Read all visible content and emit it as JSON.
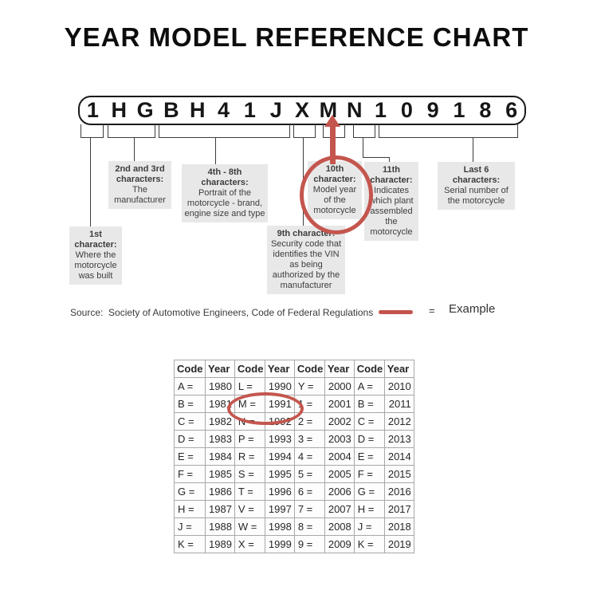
{
  "title": "YEAR MODEL REFERENCE CHART",
  "vin": {
    "characters": [
      "1",
      "H",
      "G",
      "B",
      "H",
      "4",
      "1",
      "J",
      "X",
      "M",
      "N",
      "1",
      "0",
      "9",
      "1",
      "8",
      "6"
    ]
  },
  "callouts": {
    "first": {
      "heading": "1st character:",
      "body": "Where the motorcycle was built"
    },
    "second_third": {
      "heading": "2nd and 3rd characters:",
      "body": "The manufacturer"
    },
    "fourth_eighth": {
      "heading": "4th - 8th characters:",
      "body": "Portrait of the motorcycle - brand, engine size and type"
    },
    "ninth": {
      "heading": "9th character:",
      "body": "Security code that identifies the VIN as being authorized by the manufacturer"
    },
    "tenth": {
      "heading": "10th character:",
      "body": "Model year of the motorcycle"
    },
    "eleventh": {
      "heading": "11th character:",
      "body": "Indicates which plant assembled the motorcycle"
    },
    "last_six": {
      "heading": "Last 6 characters:",
      "body": "Serial number of the motorcycle"
    }
  },
  "source_line": "Source:  Society of Automotive Engineers, Code of Federal Regulations",
  "legend": {
    "equals": "=",
    "label": "Example"
  },
  "table": {
    "headers": [
      "Code",
      "Year",
      "Code",
      "Year",
      "Code",
      "Year",
      "Code",
      "Year"
    ],
    "rows": [
      [
        "A =",
        "1980",
        "L =",
        "1990",
        "Y =",
        "2000",
        "A =",
        "2010"
      ],
      [
        "B =",
        "1981",
        "M =",
        "1991",
        "1 =",
        "2001",
        "B =",
        "2011"
      ],
      [
        "C =",
        "1982",
        "N =",
        "1992",
        "2 =",
        "2002",
        "C =",
        "2012"
      ],
      [
        "D =",
        "1983",
        "P =",
        "1993",
        "3 =",
        "2003",
        "D =",
        "2013"
      ],
      [
        "E =",
        "1984",
        "R =",
        "1994",
        "4 =",
        "2004",
        "E =",
        "2014"
      ],
      [
        "F =",
        "1985",
        "S =",
        "1995",
        "5 =",
        "2005",
        "F =",
        "2015"
      ],
      [
        "G =",
        "1986",
        "T =",
        "1996",
        "6 =",
        "2006",
        "G =",
        "2016"
      ],
      [
        "H =",
        "1987",
        "V =",
        "1997",
        "7 =",
        "2007",
        "H =",
        "2017"
      ],
      [
        "J =",
        "1988",
        "W =",
        "1998",
        "8 =",
        "2008",
        "J =",
        "2018"
      ],
      [
        "K =",
        "1989",
        "X =",
        "1999",
        "9 =",
        "2009",
        "K =",
        "2019"
      ]
    ],
    "highlighted_cell": "M = 1991"
  },
  "colors": {
    "accent_red": "#c4564e",
    "callout_background": "#e8e8e8",
    "table_border": "#a8a8a8",
    "text": "#3d3d3d"
  }
}
